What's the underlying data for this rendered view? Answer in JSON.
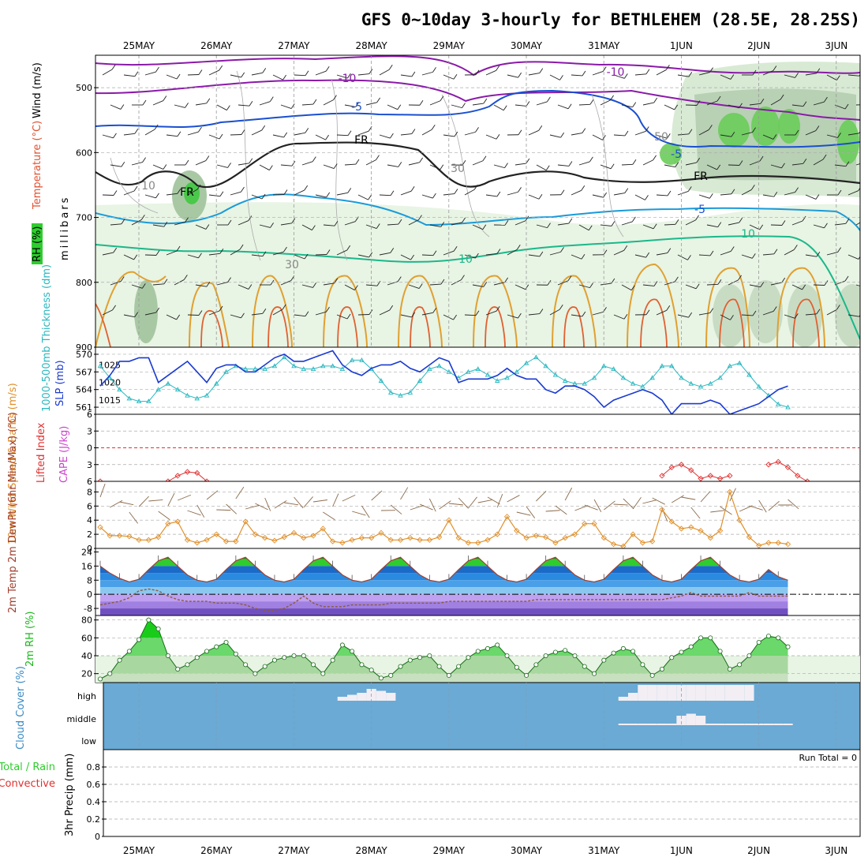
{
  "title": "GFS 0~10day 3-hourly for BETHLEHEM (28.5E, 28.25S)",
  "dates": [
    "25MAY",
    "26MAY",
    "27MAY",
    "28MAY",
    "29MAY",
    "30MAY",
    "31MAY",
    "1JUN",
    "2JUN",
    "3JUN"
  ],
  "colors": {
    "rh_green": "#2fcc2f",
    "temp_purple": "#8a1aa8",
    "temp_blue": "#1a4fd0",
    "temp_cyan": "#1a9ad8",
    "temp_teal": "#1ab88a",
    "temp_orange": "#e0a030",
    "slp_line": "#1a3ad0",
    "thickness_line": "#2ab8c0",
    "cape": "#cc44cc",
    "lifted_index": "#e03030",
    "wind": "#e0902a",
    "cloud": "#6aaad4",
    "precip_total": "#2fcc2f"
  },
  "chart_data": [
    {
      "type": "heatmap",
      "panel": "upper_air",
      "ylabel": "millibars",
      "side_labels": [
        "Wind (m/s)",
        "Temperature (°C)",
        "RH (%)"
      ],
      "yticks": [
        500,
        600,
        700,
        800,
        900
      ],
      "ylim": [
        450,
        900
      ],
      "contour_labels": [
        "-10",
        "-10",
        "-5",
        "FR",
        "FR",
        "FR",
        "-5",
        "-5",
        "10",
        "10",
        "10",
        "30",
        "30",
        "50"
      ]
    },
    {
      "type": "line",
      "panel": "slp_thickness",
      "ylabel_left": "1000-500mb Thickness (dm)",
      "ylabel_right": "SLP (mb)",
      "yticks_left": [
        561,
        564,
        567,
        570
      ],
      "yticks_right": [
        1015,
        1020,
        1025
      ],
      "series": [
        {
          "name": "SLP (mb)",
          "unit": "mb",
          "ylim": [
            1011,
            1030
          ],
          "values": [
            1019,
            1022,
            1026,
            1026,
            1027,
            1027,
            1020,
            1022,
            1024,
            1026,
            1023,
            1020,
            1024,
            1025,
            1025,
            1023,
            1023,
            1025,
            1027,
            1028,
            1026,
            1026,
            1027,
            1028,
            1029,
            1025,
            1023,
            1022,
            1024,
            1025,
            1025,
            1026,
            1024,
            1023,
            1025,
            1027,
            1026,
            1020,
            1021,
            1021,
            1021,
            1022,
            1024,
            1022,
            1021,
            1021,
            1018,
            1017,
            1019,
            1019,
            1018,
            1016,
            1013,
            1015,
            1016,
            1017,
            1018,
            1017,
            1015,
            1011,
            1014,
            1014,
            1014,
            1015,
            1014,
            1011,
            1012,
            1013,
            1014,
            1016,
            1018,
            1019
          ]
        },
        {
          "name": "1000-500mb Thickness (dm)",
          "unit": "dm",
          "ylim": [
            559.8,
            571.2
          ],
          "values": [
            568,
            566,
            564,
            562.5,
            562,
            562,
            564,
            565,
            564,
            563,
            562.5,
            563,
            565,
            567,
            568,
            567.5,
            567.5,
            567.5,
            568,
            569.5,
            568,
            567.5,
            567.5,
            568,
            568,
            567.5,
            569,
            569,
            567.5,
            565.5,
            563.5,
            563,
            563.5,
            565.5,
            567.5,
            568,
            567,
            566,
            567,
            567.5,
            566.5,
            565.5,
            566,
            567,
            568.5,
            569.5,
            568,
            566.5,
            565.5,
            565,
            565,
            566,
            568,
            567.5,
            566,
            565,
            564.5,
            566,
            568,
            568,
            566,
            565,
            564.5,
            565,
            566,
            568,
            568.5,
            566.5,
            564.5,
            563,
            561.5,
            561
          ]
        }
      ]
    },
    {
      "type": "line",
      "panel": "cape_li",
      "ylabel_left": "Lifted Index",
      "ylabel_right": "CAPE (J/kg)",
      "yticks_left": [
        -6,
        -3,
        0,
        3,
        6
      ],
      "ylim": [
        -6,
        6
      ],
      "series": [
        {
          "name": "Lifted Index",
          "values": [
            6,
            null,
            null,
            null,
            null,
            null,
            null,
            6,
            5,
            4.3,
            4.5,
            6,
            null,
            null,
            null,
            null,
            null,
            null,
            null,
            null,
            null,
            null,
            null,
            null,
            null,
            null,
            null,
            null,
            null,
            null,
            null,
            null,
            null,
            null,
            null,
            null,
            null,
            null,
            null,
            null,
            null,
            null,
            null,
            null,
            null,
            null,
            null,
            null,
            null,
            null,
            null,
            null,
            null,
            null,
            null,
            null,
            null,
            null,
            5,
            3.5,
            3,
            4,
            5.5,
            5,
            5.5,
            5,
            null,
            null,
            null,
            3,
            2.5,
            3.5,
            5,
            6
          ]
        }
      ]
    },
    {
      "type": "line",
      "panel": "wind10m",
      "ylabel": "10m Wind Speed & Barbs (m/s)",
      "yticks": [
        0,
        2,
        4,
        6,
        8
      ],
      "ylim": [
        0,
        9.5
      ],
      "series": [
        {
          "name": "10m Wind Speed",
          "unit": "m/s",
          "values": [
            3.0,
            1.8,
            1.8,
            1.7,
            1.2,
            1.2,
            1.6,
            3.5,
            3.8,
            1.2,
            0.8,
            1.2,
            2.0,
            1.0,
            1.0,
            3.8,
            2.0,
            1.5,
            1.1,
            1.6,
            2.2,
            1.5,
            1.8,
            2.8,
            1.0,
            0.8,
            1.2,
            1.5,
            1.5,
            2.2,
            1.2,
            1.2,
            1.5,
            1.2,
            1.2,
            1.6,
            4.0,
            1.5,
            0.8,
            0.8,
            1.2,
            2.0,
            4.5,
            2.5,
            1.5,
            1.8,
            1.6,
            0.8,
            1.5,
            2.0,
            3.5,
            3.5,
            1.5,
            0.6,
            0.3,
            2.0,
            0.8,
            1.0,
            5.5,
            3.8,
            2.8,
            3.0,
            2.5,
            1.5,
            2.5,
            8.0,
            4.0,
            1.6,
            0.4,
            0.8,
            0.8,
            0.6
          ]
        }
      ]
    },
    {
      "type": "area",
      "panel": "temperature",
      "ylabel": "2m Temp 2m DewPt (6hr Min/Max) (°C)",
      "yticks": [
        -8,
        0,
        8,
        16,
        24
      ],
      "ylim": [
        -12,
        26
      ],
      "series": [
        {
          "name": "2m Temp",
          "unit": "°C",
          "values": [
            16,
            12,
            9,
            7,
            8.5,
            14,
            19,
            21,
            16,
            11,
            8,
            7,
            8.5,
            14,
            19,
            21,
            16,
            11,
            8,
            7,
            8.5,
            14,
            19,
            21,
            16,
            11,
            8,
            7,
            8.5,
            14,
            19,
            21,
            16,
            11,
            8,
            7,
            8.5,
            14,
            19,
            21,
            16,
            11,
            8,
            7,
            8.5,
            14,
            19,
            21,
            16,
            11,
            8,
            7,
            8.5,
            14,
            19,
            21,
            16,
            11,
            8,
            7,
            8.5,
            14,
            19,
            21,
            16,
            11,
            8,
            7,
            8.5,
            14,
            10,
            8
          ]
        },
        {
          "name": "2m DewPt",
          "unit": "°C",
          "values": [
            -6,
            -5,
            -4,
            -2,
            2,
            3,
            2,
            -1,
            -3,
            -4,
            -4,
            -4,
            -5,
            -5,
            -5,
            -6,
            -8,
            -9,
            -9,
            -8,
            -5,
            -1,
            -5,
            -7,
            -7,
            -7,
            -6,
            -6,
            -6,
            -6,
            -5,
            -5,
            -5,
            -5,
            -5,
            -5,
            -4,
            -4,
            -4,
            -4,
            -4,
            -4,
            -4,
            -4,
            -4,
            -3,
            -3,
            -3,
            -3,
            -3,
            -3,
            -3,
            -3,
            -3,
            -3,
            -3,
            -3,
            -3,
            -3,
            -2,
            -1,
            1,
            -1,
            -1,
            -1,
            -1,
            -1,
            1,
            -1,
            -1,
            -1,
            -1
          ]
        }
      ]
    },
    {
      "type": "area",
      "panel": "rh2m",
      "ylabel": "2m RH (%)",
      "yticks": [
        20,
        40,
        60,
        80
      ],
      "ylim": [
        10,
        85
      ],
      "series": [
        {
          "name": "2m RH",
          "unit": "%",
          "values": [
            14,
            20,
            35,
            45,
            58,
            80,
            70,
            40,
            25,
            30,
            38,
            45,
            50,
            55,
            42,
            30,
            20,
            28,
            35,
            38,
            40,
            40,
            30,
            20,
            35,
            52,
            45,
            30,
            24,
            15,
            18,
            28,
            35,
            38,
            40,
            28,
            18,
            28,
            38,
            45,
            48,
            52,
            40,
            27,
            18,
            30,
            40,
            44,
            46,
            40,
            28,
            20,
            35,
            43,
            48,
            45,
            30,
            18,
            25,
            38,
            44,
            50,
            60,
            60,
            45,
            25,
            30,
            40,
            55,
            62,
            60,
            50
          ]
        }
      ]
    },
    {
      "type": "heatmap",
      "panel": "cloud_cover",
      "ylabel": "Cloud Cover (%)",
      "categories": [
        "high",
        "middle",
        "low"
      ],
      "values_high": [
        0,
        0,
        0,
        0,
        0,
        0,
        0,
        0,
        0,
        0,
        0,
        0,
        0,
        0,
        0,
        0,
        0,
        0,
        0,
        0,
        0,
        0,
        0,
        0,
        0,
        20,
        30,
        40,
        60,
        50,
        40,
        0,
        0,
        0,
        0,
        0,
        0,
        0,
        0,
        0,
        0,
        0,
        0,
        0,
        0,
        0,
        0,
        0,
        0,
        0,
        0,
        0,
        0,
        0,
        20,
        40,
        80,
        80,
        80,
        80,
        80,
        80,
        80,
        80,
        80,
        80,
        80,
        80,
        0,
        0,
        0,
        0
      ],
      "values_middle": [
        0,
        0,
        0,
        0,
        0,
        0,
        0,
        0,
        0,
        0,
        0,
        0,
        0,
        0,
        0,
        0,
        0,
        0,
        0,
        0,
        0,
        0,
        0,
        0,
        0,
        0,
        0,
        0,
        0,
        0,
        0,
        0,
        0,
        0,
        0,
        0,
        0,
        0,
        0,
        0,
        0,
        0,
        0,
        0,
        0,
        0,
        0,
        0,
        0,
        0,
        0,
        0,
        0,
        0,
        0,
        0,
        0,
        0,
        0,
        0,
        40,
        50,
        40,
        0,
        0,
        0,
        0,
        0,
        0,
        0,
        0,
        0
      ],
      "values_low": [
        0,
        0,
        0,
        0,
        0,
        0,
        0,
        0,
        0,
        0,
        0,
        0,
        0,
        0,
        0,
        0,
        0,
        0,
        0,
        0,
        0,
        0,
        0,
        0,
        0,
        0,
        0,
        0,
        0,
        0,
        0,
        0,
        0,
        0,
        0,
        0,
        0,
        0,
        0,
        0,
        0,
        0,
        0,
        0,
        0,
        0,
        0,
        0,
        0,
        0,
        0,
        0,
        0,
        0,
        10,
        10,
        10,
        10,
        10,
        10,
        10,
        10,
        10,
        10,
        10,
        10,
        10,
        10,
        10,
        10,
        10,
        10
      ]
    },
    {
      "type": "bar",
      "panel": "precip",
      "ylabel": "3hr Precip (mm)",
      "side_labels": [
        "Total / Rain",
        "Convective"
      ],
      "annotation": "Run Total = 0",
      "yticks": [
        0,
        0.2,
        0.4,
        0.6,
        0.8
      ],
      "ylim": [
        0,
        1.0
      ],
      "series": [
        {
          "name": "Total / Rain",
          "values": [
            0,
            0,
            0,
            0,
            0,
            0,
            0,
            0,
            0,
            0,
            0,
            0,
            0,
            0,
            0,
            0,
            0,
            0,
            0,
            0,
            0,
            0,
            0,
            0,
            0,
            0,
            0,
            0,
            0,
            0,
            0,
            0,
            0,
            0,
            0,
            0,
            0,
            0,
            0,
            0,
            0,
            0,
            0,
            0,
            0,
            0,
            0,
            0,
            0,
            0,
            0,
            0,
            0,
            0,
            0,
            0,
            0,
            0,
            0,
            0,
            0,
            0,
            0,
            0,
            0,
            0,
            0,
            0,
            0,
            0,
            0,
            0
          ]
        },
        {
          "name": "Convective",
          "values": [
            0,
            0,
            0,
            0,
            0,
            0,
            0,
            0,
            0,
            0,
            0,
            0,
            0,
            0,
            0,
            0,
            0,
            0,
            0,
            0,
            0,
            0,
            0,
            0,
            0,
            0,
            0,
            0,
            0,
            0,
            0,
            0,
            0,
            0,
            0,
            0,
            0,
            0,
            0,
            0,
            0,
            0,
            0,
            0,
            0,
            0,
            0,
            0,
            0,
            0,
            0,
            0,
            0,
            0,
            0,
            0,
            0,
            0,
            0,
            0,
            0,
            0,
            0,
            0,
            0,
            0,
            0,
            0,
            0,
            0,
            0,
            0
          ]
        }
      ]
    }
  ]
}
